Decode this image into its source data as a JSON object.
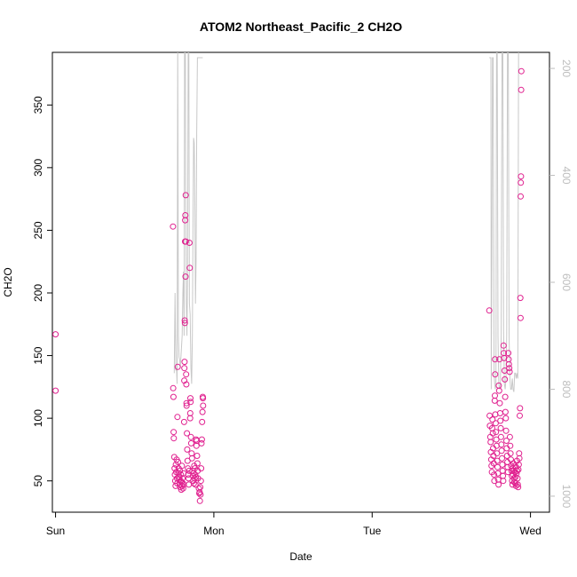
{
  "chart_data": {
    "type": "scatter",
    "title": "ATOM2 Northeast_Pacific_2 CH2O",
    "xlabel": "Date",
    "ylabel": "CH2O",
    "x_unit": "days since Sun",
    "xlim": [
      -0.02,
      3.12
    ],
    "ylim": [
      25,
      392
    ],
    "x_ticks": [
      {
        "value": 0,
        "label": "Sun"
      },
      {
        "value": 1,
        "label": "Mon"
      },
      {
        "value": 2,
        "label": "Tue"
      },
      {
        "value": 3,
        "label": "Wed"
      }
    ],
    "y_ticks": [
      50,
      100,
      150,
      200,
      250,
      300,
      350
    ],
    "y2lim": [
      1030,
      170
    ],
    "y2_ticks": [
      200,
      400,
      600,
      800,
      1000
    ],
    "grid": false,
    "colors": {
      "points": "#e0208f",
      "pressure_line": "#c8c8c8",
      "right_axis": "#bdbdbd"
    },
    "series": [
      {
        "values": [
          [
            0.0,
            167
          ],
          [
            0.0,
            122
          ],
          [
            0.742,
            253
          ],
          [
            0.743,
            124
          ],
          [
            0.745,
            117
          ],
          [
            0.746,
            89
          ],
          [
            0.747,
            84
          ],
          [
            0.75,
            69
          ],
          [
            0.752,
            60
          ],
          [
            0.754,
            55
          ],
          [
            0.756,
            50
          ],
          [
            0.758,
            46
          ],
          [
            0.76,
            63
          ],
          [
            0.762,
            57
          ],
          [
            0.765,
            67
          ],
          [
            0.767,
            52
          ],
          [
            0.769,
            48
          ],
          [
            0.77,
            101
          ],
          [
            0.772,
            141
          ],
          [
            0.774,
            65
          ],
          [
            0.776,
            56
          ],
          [
            0.778,
            60
          ],
          [
            0.78,
            51
          ],
          [
            0.782,
            53
          ],
          [
            0.784,
            47
          ],
          [
            0.786,
            58
          ],
          [
            0.788,
            45
          ],
          [
            0.79,
            50
          ],
          [
            0.792,
            55
          ],
          [
            0.794,
            43
          ],
          [
            0.796,
            49
          ],
          [
            0.798,
            62
          ],
          [
            0.8,
            46
          ],
          [
            0.802,
            52
          ],
          [
            0.804,
            48
          ],
          [
            0.806,
            44
          ],
          [
            0.808,
            56
          ],
          [
            0.81,
            47
          ],
          [
            0.812,
            97
          ],
          [
            0.813,
            130
          ],
          [
            0.814,
            140
          ],
          [
            0.815,
            145
          ],
          [
            0.816,
            178
          ],
          [
            0.817,
            176
          ],
          [
            0.818,
            241
          ],
          [
            0.819,
            258
          ],
          [
            0.82,
            262
          ],
          [
            0.821,
            213
          ],
          [
            0.822,
            278
          ],
          [
            0.823,
            241
          ],
          [
            0.825,
            135
          ],
          [
            0.826,
            127
          ],
          [
            0.827,
            112
          ],
          [
            0.828,
            110
          ],
          [
            0.83,
            88
          ],
          [
            0.832,
            75
          ],
          [
            0.834,
            66
          ],
          [
            0.836,
            60
          ],
          [
            0.838,
            55
          ],
          [
            0.84,
            52
          ],
          [
            0.842,
            47
          ],
          [
            0.844,
            58
          ],
          [
            0.846,
            240
          ],
          [
            0.848,
            220
          ],
          [
            0.85,
            100
          ],
          [
            0.851,
            104
          ],
          [
            0.852,
            116
          ],
          [
            0.853,
            113
          ],
          [
            0.855,
            85
          ],
          [
            0.857,
            80
          ],
          [
            0.86,
            72
          ],
          [
            0.862,
            68
          ],
          [
            0.865,
            58
          ],
          [
            0.868,
            54
          ],
          [
            0.87,
            50
          ],
          [
            0.872,
            56
          ],
          [
            0.874,
            48
          ],
          [
            0.876,
            62
          ],
          [
            0.878,
            52
          ],
          [
            0.88,
            60
          ],
          [
            0.882,
            55
          ],
          [
            0.884,
            47
          ],
          [
            0.886,
            53
          ],
          [
            0.888,
            83
          ],
          [
            0.89,
            78
          ],
          [
            0.892,
            82
          ],
          [
            0.894,
            70
          ],
          [
            0.896,
            64
          ],
          [
            0.898,
            58
          ],
          [
            0.9,
            52
          ],
          [
            0.905,
            44
          ],
          [
            0.908,
            40
          ],
          [
            0.91,
            41
          ],
          [
            0.912,
            34
          ],
          [
            0.914,
            45
          ],
          [
            0.916,
            39
          ],
          [
            0.918,
            50
          ],
          [
            0.92,
            60
          ],
          [
            0.922,
            80
          ],
          [
            0.924,
            83
          ],
          [
            0.926,
            97
          ],
          [
            0.928,
            105
          ],
          [
            0.93,
            117
          ],
          [
            0.931,
            116
          ],
          [
            0.932,
            110
          ],
          [
            2.74,
            186
          ],
          [
            2.742,
            102
          ],
          [
            2.744,
            94
          ],
          [
            2.746,
            85
          ],
          [
            2.748,
            81
          ],
          [
            2.75,
            73
          ],
          [
            2.752,
            67
          ],
          [
            2.754,
            62
          ],
          [
            2.756,
            57
          ],
          [
            2.758,
            92
          ],
          [
            2.76,
            99
          ],
          [
            2.762,
            88
          ],
          [
            2.764,
            76
          ],
          [
            2.766,
            70
          ],
          [
            2.768,
            64
          ],
          [
            2.77,
            55
          ],
          [
            2.772,
            50
          ],
          [
            2.774,
            114
          ],
          [
            2.775,
            118
          ],
          [
            2.776,
            147
          ],
          [
            2.777,
            135
          ],
          [
            2.778,
            103
          ],
          [
            2.78,
            96
          ],
          [
            2.782,
            89
          ],
          [
            2.784,
            83
          ],
          [
            2.786,
            78
          ],
          [
            2.788,
            72
          ],
          [
            2.79,
            66
          ],
          [
            2.792,
            61
          ],
          [
            2.794,
            56
          ],
          [
            2.796,
            51
          ],
          [
            2.798,
            47
          ],
          [
            2.8,
            126
          ],
          [
            2.802,
            122
          ],
          [
            2.804,
            147
          ],
          [
            2.806,
            112
          ],
          [
            2.808,
            104
          ],
          [
            2.81,
            98
          ],
          [
            2.812,
            92
          ],
          [
            2.814,
            85
          ],
          [
            2.816,
            79
          ],
          [
            2.818,
            74
          ],
          [
            2.82,
            68
          ],
          [
            2.822,
            63
          ],
          [
            2.824,
            58
          ],
          [
            2.826,
            54
          ],
          [
            2.828,
            50
          ],
          [
            2.83,
            158
          ],
          [
            2.832,
            152
          ],
          [
            2.834,
            148
          ],
          [
            2.836,
            138
          ],
          [
            2.838,
            131
          ],
          [
            2.84,
            117
          ],
          [
            2.842,
            105
          ],
          [
            2.844,
            100
          ],
          [
            2.846,
            90
          ],
          [
            2.848,
            82
          ],
          [
            2.85,
            76
          ],
          [
            2.852,
            70
          ],
          [
            2.854,
            65
          ],
          [
            2.856,
            61
          ],
          [
            2.858,
            57
          ],
          [
            2.86,
            152
          ],
          [
            2.862,
            147
          ],
          [
            2.864,
            143
          ],
          [
            2.866,
            140
          ],
          [
            2.868,
            137
          ],
          [
            2.87,
            85
          ],
          [
            2.872,
            78
          ],
          [
            2.874,
            72
          ],
          [
            2.876,
            67
          ],
          [
            2.878,
            62
          ],
          [
            2.88,
            58
          ],
          [
            2.882,
            54
          ],
          [
            2.884,
            50
          ],
          [
            2.886,
            47
          ],
          [
            2.888,
            60
          ],
          [
            2.89,
            55
          ],
          [
            2.892,
            64
          ],
          [
            2.894,
            58
          ],
          [
            2.896,
            52
          ],
          [
            2.898,
            49
          ],
          [
            2.9,
            62
          ],
          [
            2.902,
            57
          ],
          [
            2.904,
            53
          ],
          [
            2.906,
            48
          ],
          [
            2.908,
            46
          ],
          [
            2.91,
            61
          ],
          [
            2.912,
            56
          ],
          [
            2.914,
            66
          ],
          [
            2.916,
            58
          ],
          [
            2.918,
            52
          ],
          [
            2.92,
            47
          ],
          [
            2.922,
            45
          ],
          [
            2.924,
            59
          ],
          [
            2.926,
            63
          ],
          [
            2.928,
            72
          ],
          [
            2.93,
            68
          ],
          [
            2.932,
            102
          ],
          [
            2.934,
            108
          ],
          [
            2.936,
            196
          ],
          [
            2.937,
            180
          ],
          [
            2.938,
            277
          ],
          [
            2.939,
            288
          ],
          [
            2.94,
            293
          ],
          [
            2.941,
            362
          ],
          [
            2.942,
            377
          ]
        ]
      }
    ],
    "pressure_line": {
      "values": [
        [
          0.75,
          770
        ],
        [
          0.755,
          620
        ],
        [
          0.76,
          765
        ],
        [
          0.764,
          760
        ],
        [
          0.768,
          790
        ],
        [
          0.772,
          150
        ],
        [
          0.776,
          700
        ],
        [
          0.78,
          740
        ],
        [
          0.784,
          745
        ],
        [
          0.788,
          760
        ],
        [
          0.792,
          740
        ],
        [
          0.796,
          720
        ],
        [
          0.8,
          700
        ],
        [
          0.804,
          620
        ],
        [
          0.808,
          580
        ],
        [
          0.812,
          700
        ],
        [
          0.815,
          150
        ],
        [
          0.818,
          150
        ],
        [
          0.82,
          150
        ],
        [
          0.822,
          430
        ],
        [
          0.826,
          640
        ],
        [
          0.83,
          700
        ],
        [
          0.834,
          590
        ],
        [
          0.838,
          150
        ],
        [
          0.842,
          150
        ],
        [
          0.846,
          640
        ],
        [
          0.85,
          660
        ],
        [
          0.855,
          760
        ],
        [
          0.86,
          790
        ],
        [
          0.864,
          700
        ],
        [
          0.868,
          500
        ],
        [
          0.872,
          330
        ],
        [
          0.876,
          340
        ],
        [
          0.88,
          450
        ],
        [
          0.884,
          640
        ],
        [
          0.888,
          560
        ],
        [
          0.892,
          320
        ],
        [
          0.896,
          180
        ],
        [
          0.9,
          180
        ],
        [
          0.93,
          180
        ],
        [
          2.74,
          180
        ],
        [
          2.745,
          180
        ],
        [
          2.75,
          180
        ],
        [
          2.752,
          800
        ],
        [
          2.756,
          550
        ],
        [
          2.76,
          180
        ],
        [
          2.764,
          180
        ],
        [
          2.77,
          770
        ],
        [
          2.774,
          790
        ],
        [
          2.778,
          800
        ],
        [
          2.782,
          790
        ],
        [
          2.786,
          150
        ],
        [
          2.79,
          150
        ],
        [
          2.795,
          700
        ],
        [
          2.8,
          790
        ],
        [
          2.805,
          800
        ],
        [
          2.81,
          790
        ],
        [
          2.815,
          700
        ],
        [
          2.82,
          150
        ],
        [
          2.825,
          150
        ],
        [
          2.83,
          690
        ],
        [
          2.835,
          790
        ],
        [
          2.84,
          800
        ],
        [
          2.845,
          780
        ],
        [
          2.85,
          700
        ],
        [
          2.855,
          150
        ],
        [
          2.86,
          150
        ],
        [
          2.865,
          700
        ],
        [
          2.87,
          780
        ],
        [
          2.875,
          800
        ],
        [
          2.88,
          800
        ],
        [
          2.885,
          780
        ],
        [
          2.89,
          800
        ],
        [
          2.895,
          805
        ],
        [
          2.9,
          770
        ],
        [
          2.905,
          770
        ],
        [
          2.91,
          780
        ],
        [
          2.915,
          770
        ],
        [
          2.92,
          780
        ],
        [
          2.925,
          150
        ],
        [
          2.93,
          150
        ],
        [
          2.935,
          150
        ],
        [
          2.942,
          150
        ]
      ]
    }
  }
}
